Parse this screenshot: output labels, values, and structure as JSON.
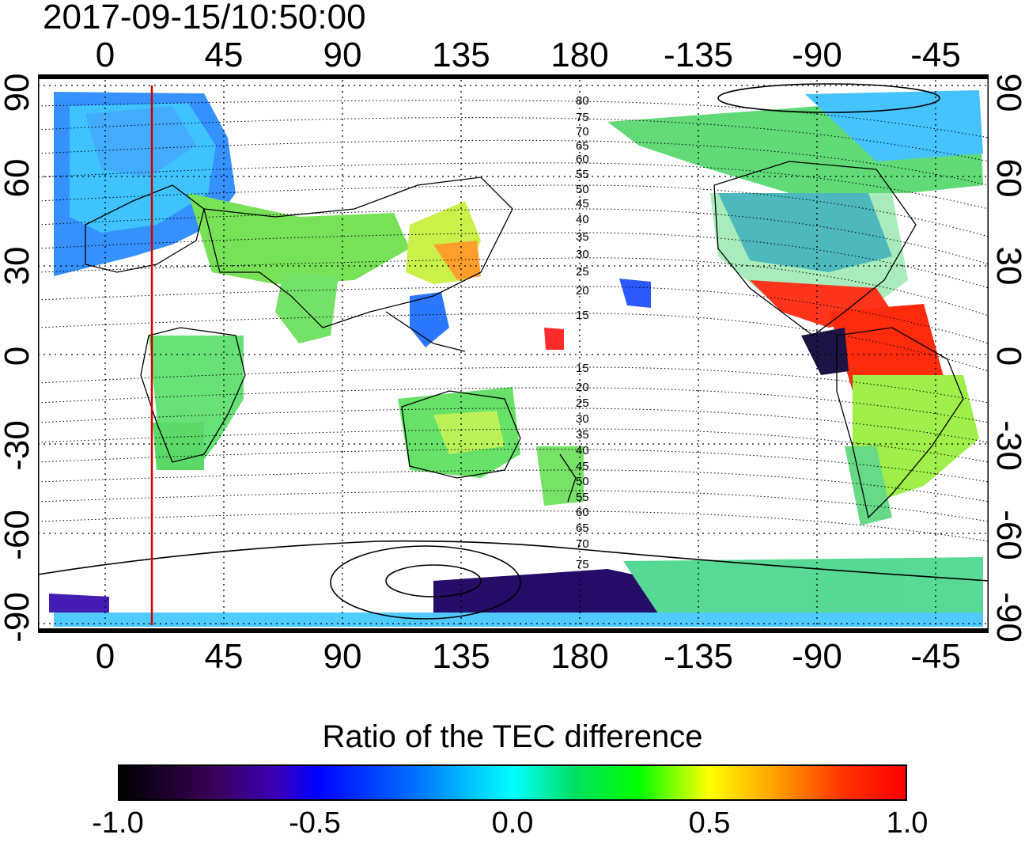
{
  "timestamp": "2017-09-15/10:50:00",
  "axes": {
    "top_longitude_ticks": [
      "0",
      "45",
      "90",
      "135",
      "180",
      "-135",
      "-90",
      "-45"
    ],
    "bottom_longitude_ticks": [
      "0",
      "45",
      "90",
      "135",
      "180",
      "-135",
      "-90",
      "-45"
    ],
    "left_latitude_ticks": [
      "90",
      "60",
      "30",
      "0",
      "-30",
      "-60",
      "-90"
    ],
    "right_latitude_ticks": [
      "90",
      "60",
      "30",
      "0",
      "-30",
      "-60",
      "-90"
    ]
  },
  "contour_labels": {
    "north": [
      "80",
      "75",
      "70",
      "65",
      "60",
      "55",
      "50",
      "45",
      "40",
      "35",
      "30",
      "25",
      "20",
      "15"
    ],
    "south": [
      "15",
      "20",
      "25",
      "30",
      "35",
      "40",
      "45",
      "50",
      "55",
      "60",
      "65",
      "70",
      "75"
    ]
  },
  "marker_line": {
    "longitude": 18,
    "color": "#cc0000"
  },
  "colorbar": {
    "title": "Ratio of the TEC difference",
    "ticks": [
      "-1.0",
      "-0.5",
      "0.0",
      "0.5",
      "1.0"
    ],
    "range": [
      -1.0,
      1.0
    ],
    "colors": [
      "#000000",
      "#3c00b8",
      "#0000ff",
      "#00ffff",
      "#00ff00",
      "#ffff00",
      "#ff9900",
      "#ff0000"
    ]
  }
}
